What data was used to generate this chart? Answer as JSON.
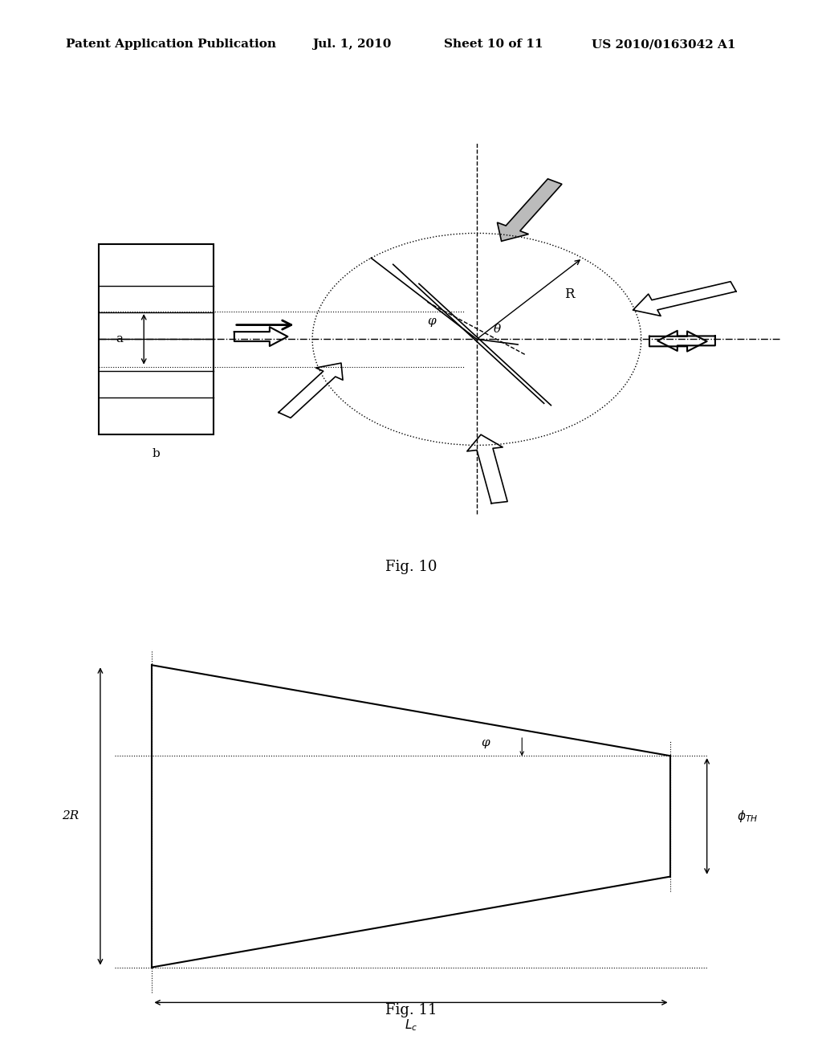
{
  "bg_color": "#ffffff",
  "header_text": "Patent Application Publication",
  "header_date": "Jul. 1, 2010",
  "header_sheet": "Sheet 10 of 11",
  "header_patent": "US 2010/0163042 A1",
  "fig10_label": "Fig. 10",
  "fig11_label": "Fig. 11",
  "label_a": "a",
  "label_b": "b",
  "label_phi": "φ",
  "label_theta": "θ",
  "label_R": "R",
  "label_2R": "2R",
  "label_phi_th": "φₔₕ",
  "label_phi_angle": "φ",
  "label_Lc": "Lᴄ"
}
